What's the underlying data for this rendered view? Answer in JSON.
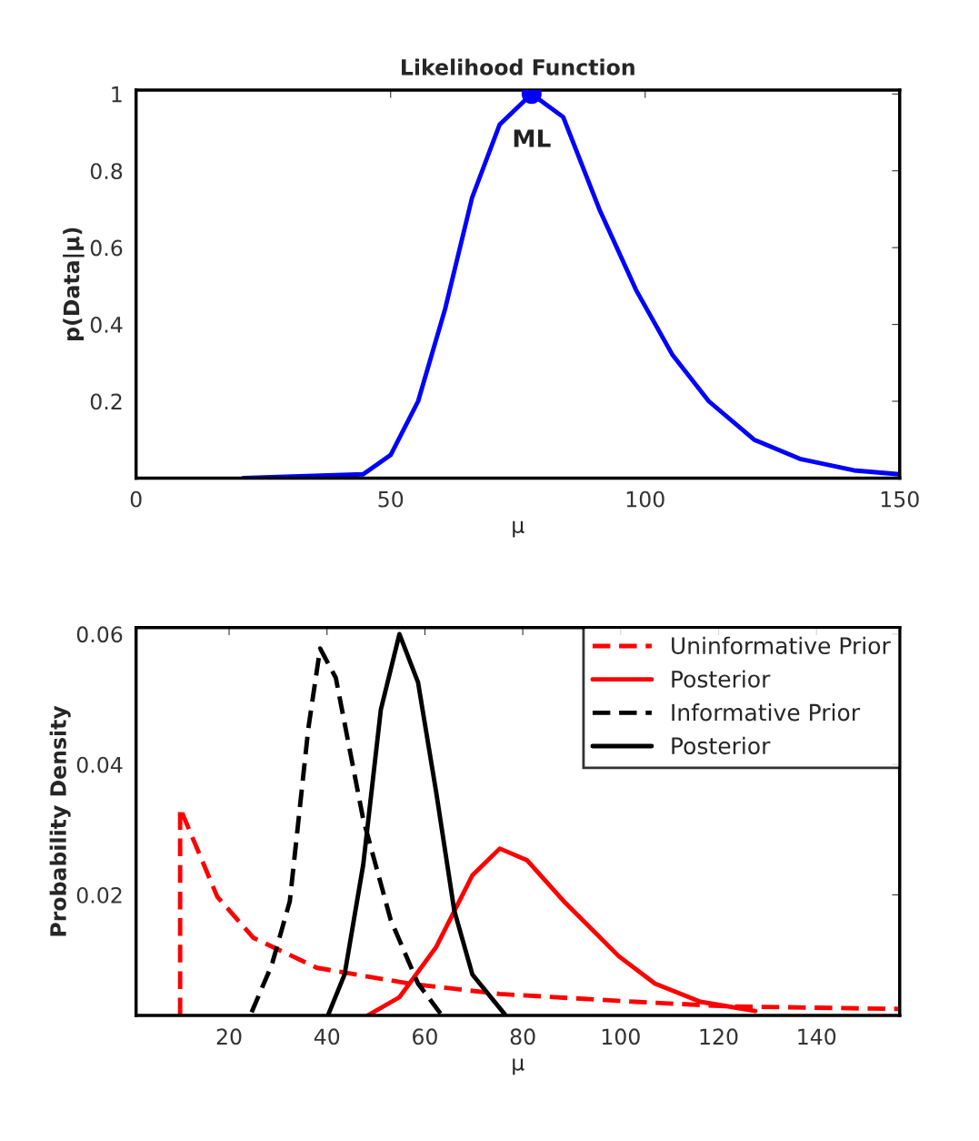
{
  "chart_data": [
    {
      "type": "line",
      "title": "Likelihood Function",
      "xlabel": "μ",
      "ylabel": "p(Data|μ)",
      "xlim": [
        0,
        150
      ],
      "ylim": [
        0,
        1.01
      ],
      "xticks": [
        0,
        50,
        100,
        150
      ],
      "yticks": [
        0.2,
        0.4,
        0.6,
        0.8,
        1
      ],
      "series": [
        {
          "color": "#0000ff",
          "line_style": "solid",
          "x": [
            21,
            44.6,
            50,
            55.4,
            60.7,
            66,
            71.4,
            77.7,
            83.9,
            91,
            98.2,
            105.4,
            112.5,
            121.4,
            130.4,
            141,
            150
          ],
          "values": [
            0,
            0.01,
            0.06,
            0.2,
            0.44,
            0.73,
            0.92,
            1.0,
            0.94,
            0.7,
            0.49,
            0.32,
            0.2,
            0.1,
            0.05,
            0.02,
            0.01
          ]
        },
        {
          "type": "scatter",
          "color": "#0000ff",
          "marker": "circle",
          "x": [
            77.7
          ],
          "values": [
            1.0
          ]
        }
      ],
      "annotations": [
        {
          "text": "ML",
          "x": 77.7,
          "y": 1.0
        }
      ]
    },
    {
      "type": "line",
      "xlabel": "μ",
      "ylabel": "Probability Density",
      "xlim": [
        1,
        157
      ],
      "ylim": [
        0.0015,
        0.061
      ],
      "xticks": [
        20,
        40,
        60,
        80,
        100,
        120,
        140
      ],
      "yticks": [
        0.02,
        0.04,
        0.06
      ],
      "legend": "top right",
      "series": [
        {
          "name": "Uninformative Prior",
          "color": "#ff0000",
          "line_style": "dashed",
          "x": [
            10,
            10,
            17.6,
            25,
            38,
            56.7,
            75.3,
            103,
            122,
            157
          ],
          "values": [
            0.0015,
            0.0333,
            0.0197,
            0.0134,
            0.0088,
            0.0064,
            0.0048,
            0.0036,
            0.0029,
            0.0025
          ]
        },
        {
          "name": "Posterior",
          "color": "#ff0000",
          "line_style": "solid",
          "x": [
            48.3,
            54.8,
            62.3,
            69.7,
            75.3,
            80.9,
            88.4,
            99.6,
            107,
            116.3,
            127.5
          ],
          "values": [
            0.0015,
            0.0043,
            0.012,
            0.023,
            0.0271,
            0.0253,
            0.019,
            0.0106,
            0.0064,
            0.0036,
            0.0022
          ]
        },
        {
          "name": "Informative Prior",
          "color": "#000000",
          "line_style": "dashed",
          "x": [
            24.6,
            28.7,
            32.4,
            36.2,
            38.6,
            41.8,
            47.4,
            53,
            58.6,
            63.3
          ],
          "values": [
            0.002,
            0.0092,
            0.019,
            0.0456,
            0.0578,
            0.0533,
            0.0316,
            0.0162,
            0.0064,
            0.0017
          ]
        },
        {
          "name": "Posterior",
          "color": "#000000",
          "line_style": "solid",
          "x": [
            40.3,
            43.6,
            47.4,
            51,
            54.8,
            58.6,
            62.3,
            66,
            69.7,
            76.3
          ],
          "values": [
            0.0017,
            0.0078,
            0.0246,
            0.0484,
            0.06,
            0.0526,
            0.0358,
            0.0176,
            0.0078,
            0.0017
          ]
        }
      ]
    }
  ]
}
